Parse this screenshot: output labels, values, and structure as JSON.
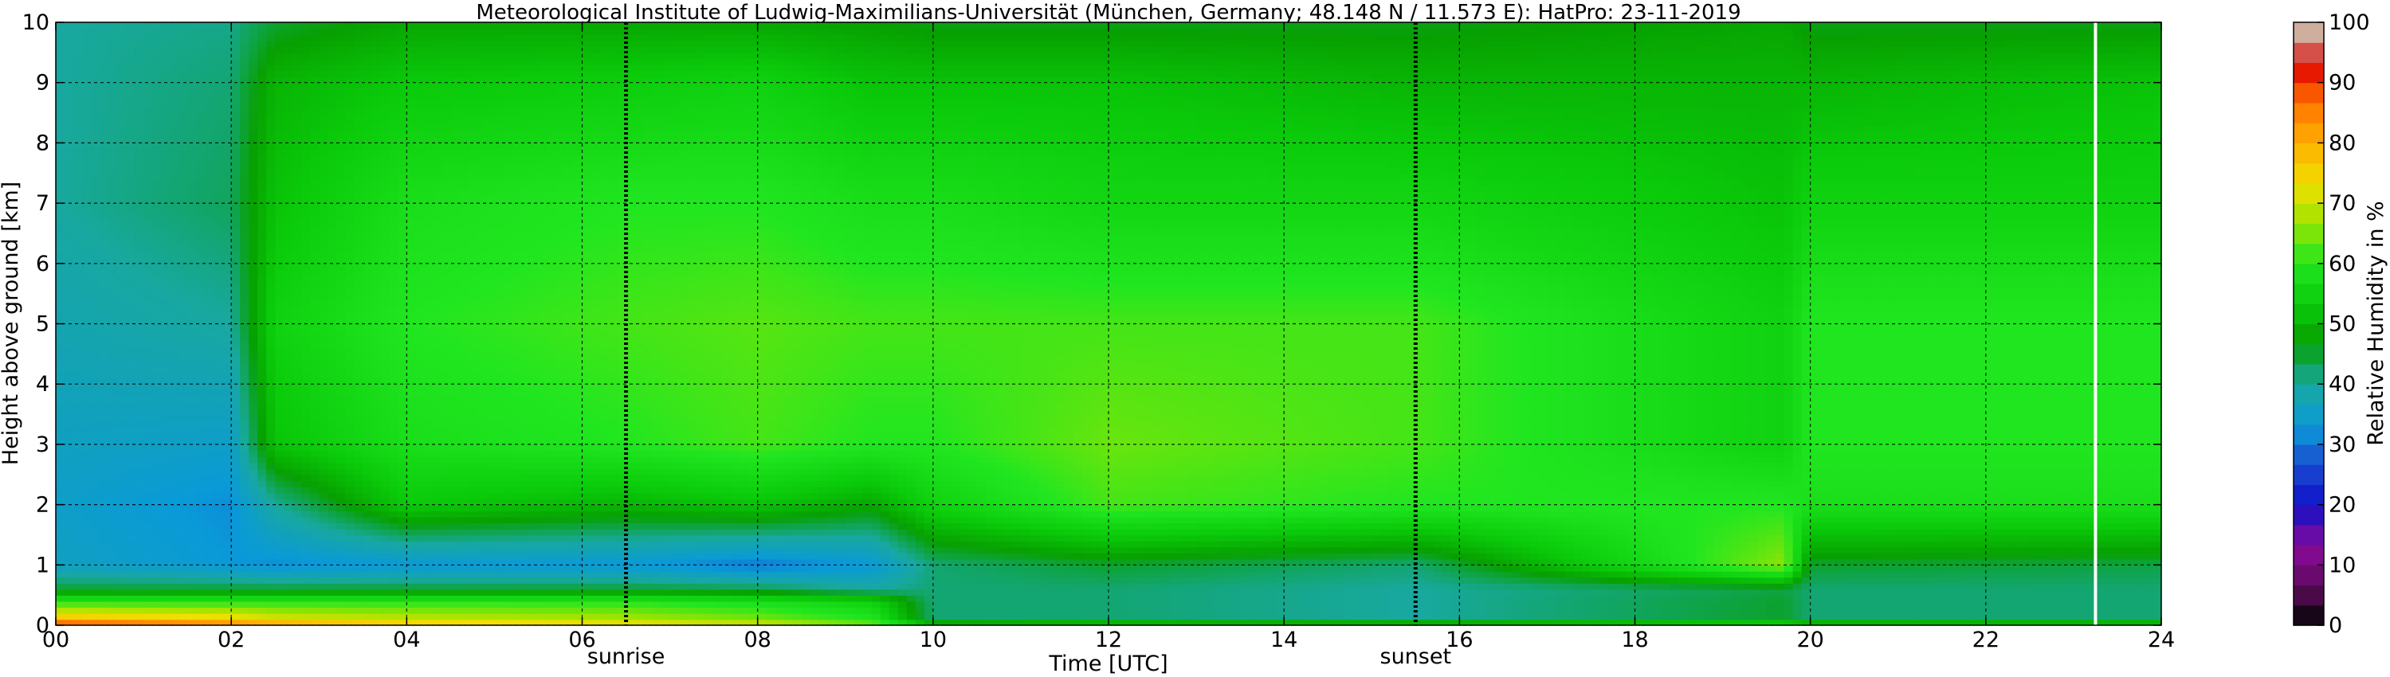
{
  "chart_data": {
    "type": "heatmap",
    "title": "Meteorological Institute of Ludwig-Maximilians-Universität (München, Germany; 48.148 N / 11.573 E):    HatPro: 23-11-2019",
    "xlabel": "Time [UTC]",
    "ylabel": "Height above ground [km]",
    "xlim": [
      0,
      24
    ],
    "ylim": [
      0,
      10
    ],
    "x_ticks": [
      "00",
      "02",
      "04",
      "06",
      "08",
      "10",
      "12",
      "14",
      "16",
      "18",
      "20",
      "22",
      "24"
    ],
    "y_ticks": [
      "0",
      "1",
      "2",
      "3",
      "4",
      "5",
      "6",
      "7",
      "8",
      "9",
      "10"
    ],
    "grid": true,
    "markers": [
      {
        "label": "sunrise",
        "x": 6.5
      },
      {
        "label": "sunset",
        "x": 15.5
      }
    ],
    "end_marker_x": 23.25,
    "colorbar": {
      "label": "Relative Humidity in %",
      "range": [
        0,
        100
      ],
      "ticks": [
        "0",
        "10",
        "20",
        "30",
        "40",
        "50",
        "60",
        "70",
        "80",
        "90",
        "100"
      ],
      "stops": [
        {
          "v": 0,
          "c": "#000000"
        },
        {
          "v": 3,
          "c": "#2a0a2a"
        },
        {
          "v": 6,
          "c": "#5a0a5a"
        },
        {
          "v": 13,
          "c": "#8a0a9a"
        },
        {
          "v": 20,
          "c": "#1010c8"
        },
        {
          "v": 27,
          "c": "#1a50d0"
        },
        {
          "v": 33,
          "c": "#0a9ad8"
        },
        {
          "v": 40,
          "c": "#18a8a0"
        },
        {
          "v": 47,
          "c": "#07a000"
        },
        {
          "v": 53,
          "c": "#0aca0a"
        },
        {
          "v": 60,
          "c": "#20e620"
        },
        {
          "v": 67,
          "c": "#a0e400"
        },
        {
          "v": 73,
          "c": "#f0e000"
        },
        {
          "v": 80,
          "c": "#ffb000"
        },
        {
          "v": 87,
          "c": "#ff7000"
        },
        {
          "v": 93,
          "c": "#e00000"
        },
        {
          "v": 97,
          "c": "#c8a090"
        },
        {
          "v": 100,
          "c": "#d8c0b0"
        }
      ]
    },
    "humidity_field": {
      "time_h": [
        0,
        2,
        2.5,
        4,
        6.5,
        8,
        9.3,
        10,
        12,
        15.5,
        19.7,
        20,
        24
      ],
      "height_km": [
        0,
        0.1,
        0.4,
        0.6,
        1.0,
        2.0,
        3.0,
        5.0,
        7.0,
        9.0,
        10.0
      ],
      "rh_percent_by_time": [
        [
          95,
          78,
          60,
          45,
          36,
          35,
          36,
          38,
          40,
          40,
          40
        ],
        [
          88,
          75,
          60,
          45,
          33,
          32,
          35,
          40,
          43,
          42,
          41
        ],
        [
          85,
          72,
          60,
          45,
          32,
          40,
          52,
          55,
          52,
          50,
          45
        ],
        [
          78,
          70,
          60,
          45,
          33,
          53,
          58,
          60,
          58,
          53,
          48
        ],
        [
          75,
          68,
          60,
          45,
          33,
          50,
          60,
          62,
          60,
          54,
          48
        ],
        [
          72,
          65,
          58,
          44,
          30,
          52,
          62,
          63,
          60,
          55,
          48
        ],
        [
          65,
          60,
          55,
          40,
          33,
          48,
          60,
          62,
          58,
          52,
          47
        ],
        [
          55,
          42,
          42,
          42,
          42,
          55,
          60,
          62,
          58,
          52,
          46
        ],
        [
          58,
          42,
          42,
          42,
          45,
          62,
          64,
          62,
          56,
          52,
          46
        ],
        [
          58,
          40,
          40,
          40,
          42,
          60,
          62,
          62,
          56,
          50,
          46
        ],
        [
          60,
          45,
          45,
          44,
          66,
          60,
          55,
          55,
          52,
          50,
          48
        ],
        [
          58,
          42,
          42,
          42,
          45,
          58,
          60,
          60,
          55,
          50,
          46
        ],
        [
          58,
          42,
          42,
          42,
          44,
          58,
          60,
          60,
          55,
          52,
          46
        ]
      ]
    }
  }
}
